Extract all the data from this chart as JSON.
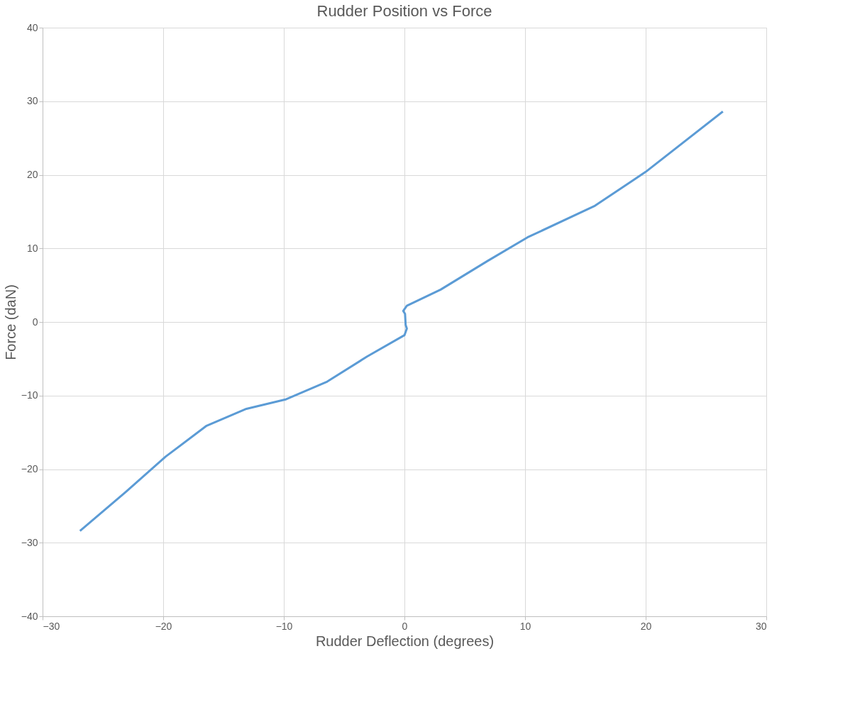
{
  "chart_data": {
    "type": "line",
    "title": "Rudder Position vs Force",
    "xlabel": "Rudder Deflection (degrees)",
    "ylabel": "Force (daN)",
    "series": [
      {
        "color": "#5b9bd5",
        "x": [
          26.4,
          20.0,
          15.8,
          10.2,
          6.9,
          3.0,
          0.2,
          -0.1,
          0.05,
          0.1,
          0.2,
          0.0,
          -3.1,
          -6.4,
          -9.8,
          -13.1,
          -16.4,
          -19.8,
          -23.1,
          -26.9
        ],
        "values": [
          28.6,
          20.4,
          15.8,
          11.5,
          8.3,
          4.4,
          2.2,
          1.5,
          1.1,
          -0.4,
          -0.9,
          -1.8,
          -4.7,
          -8.1,
          -10.5,
          -11.8,
          -14.1,
          -18.3,
          -23.1,
          -28.4
        ]
      }
    ],
    "xlim": [
      -30,
      30
    ],
    "xticks": [
      -30,
      -20,
      -10,
      0,
      10,
      20,
      30
    ],
    "ylim": [
      -40,
      40
    ],
    "yticks": [
      -40,
      -30,
      -20,
      -10,
      0,
      10,
      20,
      30,
      40
    ],
    "grid": true,
    "marker": "none",
    "line_style": "solid"
  }
}
